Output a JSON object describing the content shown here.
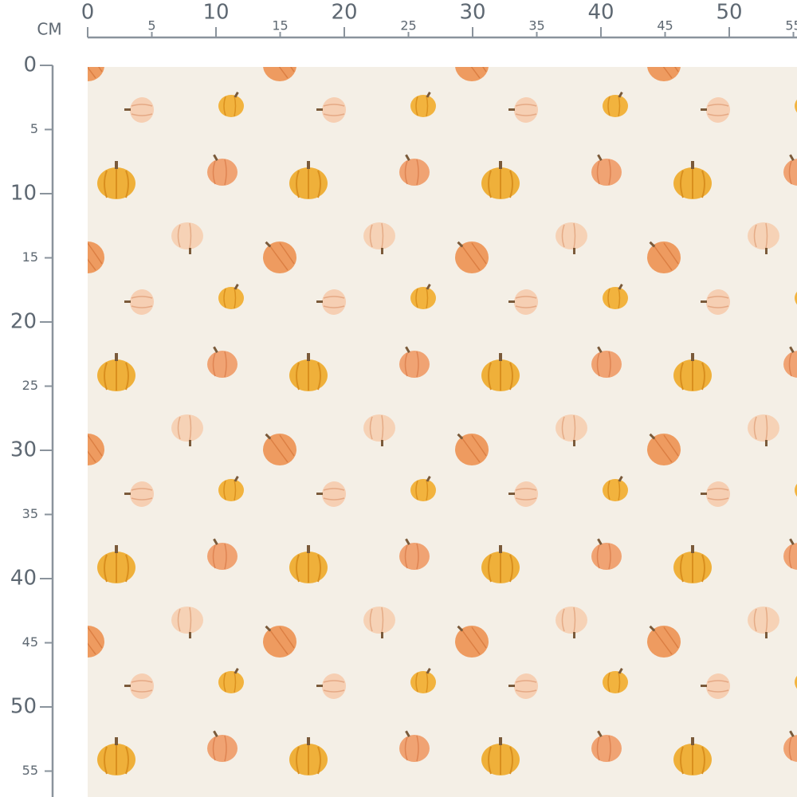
{
  "ruler": {
    "unit": "CM",
    "x_labels": [
      0,
      5,
      10,
      15,
      20,
      25,
      30,
      35,
      40,
      45,
      50,
      55
    ],
    "y_labels": [
      0,
      5,
      10,
      15,
      20,
      25,
      30,
      35,
      40,
      45,
      50,
      55
    ]
  }
}
